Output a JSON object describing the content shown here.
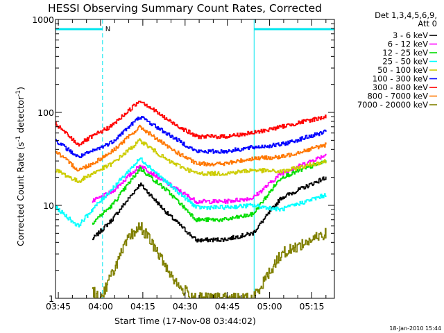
{
  "chart_data": {
    "type": "line",
    "title": "HESSI Observing Summary Count Rates, Corrected",
    "xlabel": "Start Time (17-Nov-08 03:44:02)",
    "ylabel_parts": [
      "Corrected Count Rate (s",
      "-1",
      " detector",
      "-1",
      ")"
    ],
    "y_scale": "log",
    "ylim": [
      1,
      1000
    ],
    "xlim_minutes": [
      0,
      99
    ],
    "x_ticks": [
      "03:45",
      "04:00",
      "04:15",
      "04:30",
      "04:45",
      "05:00",
      "05:15"
    ],
    "y_ticks": [
      "1",
      "10",
      "100",
      "1000"
    ],
    "legend_position": "right",
    "legend_header": [
      "Det 1,3,4,5,6,9,",
      "Att 0"
    ],
    "annotations": {
      "marker_label": "N",
      "timestamp": "18-Jan-2010 15:44"
    },
    "night_intervals": [
      [
        0,
        16.7
      ],
      [
        70.5,
        99
      ]
    ],
    "series": [
      {
        "name": "3 - 6 keV",
        "color": "#000000",
        "values": [
          [
            13,
            4.3
          ],
          [
            20,
            7
          ],
          [
            30,
            17
          ],
          [
            40,
            8
          ],
          [
            50,
            4.2
          ],
          [
            60,
            4.3
          ],
          [
            70,
            5
          ],
          [
            80,
            12
          ],
          [
            96,
            20
          ]
        ]
      },
      {
        "name": "6 - 12 keV",
        "color": "#ff00ff",
        "values": [
          [
            13,
            11
          ],
          [
            20,
            14
          ],
          [
            30,
            27
          ],
          [
            40,
            17
          ],
          [
            50,
            11
          ],
          [
            60,
            11
          ],
          [
            70,
            12
          ],
          [
            80,
            22
          ],
          [
            96,
            35
          ]
        ]
      },
      {
        "name": "12 - 25 keV",
        "color": "#00dd00",
        "values": [
          [
            13,
            6.5
          ],
          [
            20,
            10
          ],
          [
            30,
            25
          ],
          [
            40,
            14
          ],
          [
            50,
            7
          ],
          [
            60,
            7
          ],
          [
            70,
            8
          ],
          [
            80,
            20
          ],
          [
            96,
            30
          ]
        ]
      },
      {
        "name": "25 - 50 keV",
        "color": "#00ffff",
        "values": [
          [
            0,
            9.5
          ],
          [
            8,
            6
          ],
          [
            13,
            9
          ],
          [
            20,
            15
          ],
          [
            30,
            32
          ],
          [
            40,
            17
          ],
          [
            50,
            9.5
          ],
          [
            60,
            9.5
          ],
          [
            70,
            10
          ],
          [
            80,
            9
          ],
          [
            96,
            13
          ]
        ]
      },
      {
        "name": "50 - 100 keV",
        "color": "#cccc00",
        "values": [
          [
            0,
            24
          ],
          [
            8,
            18
          ],
          [
            13,
            22
          ],
          [
            20,
            28
          ],
          [
            30,
            50
          ],
          [
            40,
            30
          ],
          [
            50,
            22
          ],
          [
            60,
            22
          ],
          [
            70,
            24
          ],
          [
            80,
            23
          ],
          [
            96,
            30
          ]
        ]
      },
      {
        "name": "100 - 300 keV",
        "color": "#0000ff",
        "values": [
          [
            0,
            50
          ],
          [
            8,
            33
          ],
          [
            13,
            38
          ],
          [
            20,
            48
          ],
          [
            30,
            90
          ],
          [
            40,
            58
          ],
          [
            50,
            38
          ],
          [
            60,
            38
          ],
          [
            70,
            42
          ],
          [
            80,
            45
          ],
          [
            96,
            62
          ]
        ]
      },
      {
        "name": "300 - 800 keV",
        "color": "#ff0000",
        "values": [
          [
            0,
            75
          ],
          [
            8,
            45
          ],
          [
            13,
            55
          ],
          [
            20,
            72
          ],
          [
            30,
            135
          ],
          [
            40,
            82
          ],
          [
            50,
            55
          ],
          [
            60,
            55
          ],
          [
            70,
            60
          ],
          [
            80,
            70
          ],
          [
            96,
            90
          ]
        ]
      },
      {
        "name": "800 - 7000 keV",
        "color": "#ff7700",
        "values": [
          [
            0,
            38
          ],
          [
            8,
            24
          ],
          [
            13,
            28
          ],
          [
            20,
            38
          ],
          [
            30,
            70
          ],
          [
            40,
            42
          ],
          [
            50,
            28
          ],
          [
            60,
            28
          ],
          [
            70,
            32
          ],
          [
            80,
            33
          ],
          [
            96,
            45
          ]
        ]
      },
      {
        "name": "7000 - 20000 keV",
        "color": "#808000",
        "values": [
          [
            13,
            1.2
          ],
          [
            16,
            1
          ],
          [
            22,
            2.5
          ],
          [
            26,
            4.5
          ],
          [
            30,
            6
          ],
          [
            34,
            4
          ],
          [
            38,
            2.5
          ],
          [
            44,
            1.3
          ],
          [
            50,
            1
          ],
          [
            60,
            1
          ],
          [
            70,
            1
          ],
          [
            80,
            3
          ],
          [
            96,
            5
          ]
        ]
      }
    ]
  }
}
